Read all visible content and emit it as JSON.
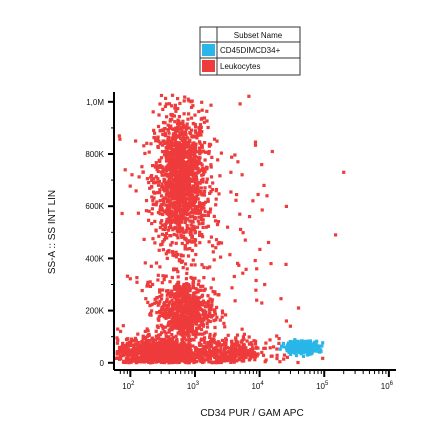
{
  "chart_data": {
    "type": "scatter",
    "xlabel": "CD34 PUR / GAM APC",
    "ylabel": "SS-A :: SS INT LIN",
    "x_scale": "log",
    "x_ticks": [
      {
        "value": 100,
        "base": "10",
        "exp": "2"
      },
      {
        "value": 1000,
        "base": "10",
        "exp": "3"
      },
      {
        "value": 10000,
        "base": "10",
        "exp": "4"
      },
      {
        "value": 100000,
        "base": "10",
        "exp": "5"
      },
      {
        "value": 1000000,
        "base": "10",
        "exp": "6"
      }
    ],
    "x_range": [
      60,
      1200000
    ],
    "y_scale": "linear",
    "y_ticks": [
      {
        "value": 0,
        "label": "0"
      },
      {
        "value": 200000,
        "label": "200K"
      },
      {
        "value": 400000,
        "label": "400K"
      },
      {
        "value": 600000,
        "label": "600K"
      },
      {
        "value": 800000,
        "label": "800K"
      },
      {
        "value": 1000000,
        "label": "1,0M"
      }
    ],
    "y_range": [
      -20000,
      1030000
    ],
    "grid": false,
    "legend": {
      "placement": "top-center",
      "header": "Subset Name",
      "entries": [
        {
          "name": "CD45DIMCD34+",
          "color": "#29b6e8"
        },
        {
          "name": "Leukocytes",
          "color": "#ee3b3b"
        }
      ]
    },
    "series": [
      {
        "name": "Leukocytes",
        "color": "#ee3b3b",
        "clusters": [
          {
            "x_center": 600,
            "x_log_sd": 0.2,
            "y_center": 700000,
            "y_sd": 130000,
            "count": 1400
          },
          {
            "x_center": 700,
            "x_log_sd": 0.22,
            "y_center": 200000,
            "y_sd": 60000,
            "count": 700
          },
          {
            "x_center": 250,
            "x_log_sd": 0.3,
            "y_center": 40000,
            "y_sd": 25000,
            "count": 900
          },
          {
            "x_center": 3000,
            "x_log_sd": 0.35,
            "y_center": 40000,
            "y_sd": 25000,
            "count": 400
          },
          {
            "x_center": 1000,
            "x_log_sd": 0.55,
            "y_center": 450000,
            "y_sd": 300000,
            "count": 220
          }
        ],
        "outliers": [
          {
            "x": 13000,
            "y": 640000
          },
          {
            "x": 200000,
            "y": 730000
          },
          {
            "x": 150000,
            "y": 490000
          },
          {
            "x": 9000,
            "y": 360000
          },
          {
            "x": 26000,
            "y": 160000
          },
          {
            "x": 30000,
            "y": 140000
          },
          {
            "x": 40000,
            "y": 210000
          },
          {
            "x": 9000,
            "y": 240000
          },
          {
            "x": 6000,
            "y": 470000
          },
          {
            "x": 12000,
            "y": 300000
          },
          {
            "x": 15000,
            "y": 380000
          },
          {
            "x": 7000,
            "y": 560000
          }
        ]
      },
      {
        "name": "CD45DIMCD34+",
        "color": "#29b6e8",
        "clusters": [
          {
            "x_center": 45000,
            "x_log_sd": 0.13,
            "y_center": 60000,
            "y_sd": 12000,
            "count": 320
          }
        ],
        "outliers": []
      }
    ]
  }
}
